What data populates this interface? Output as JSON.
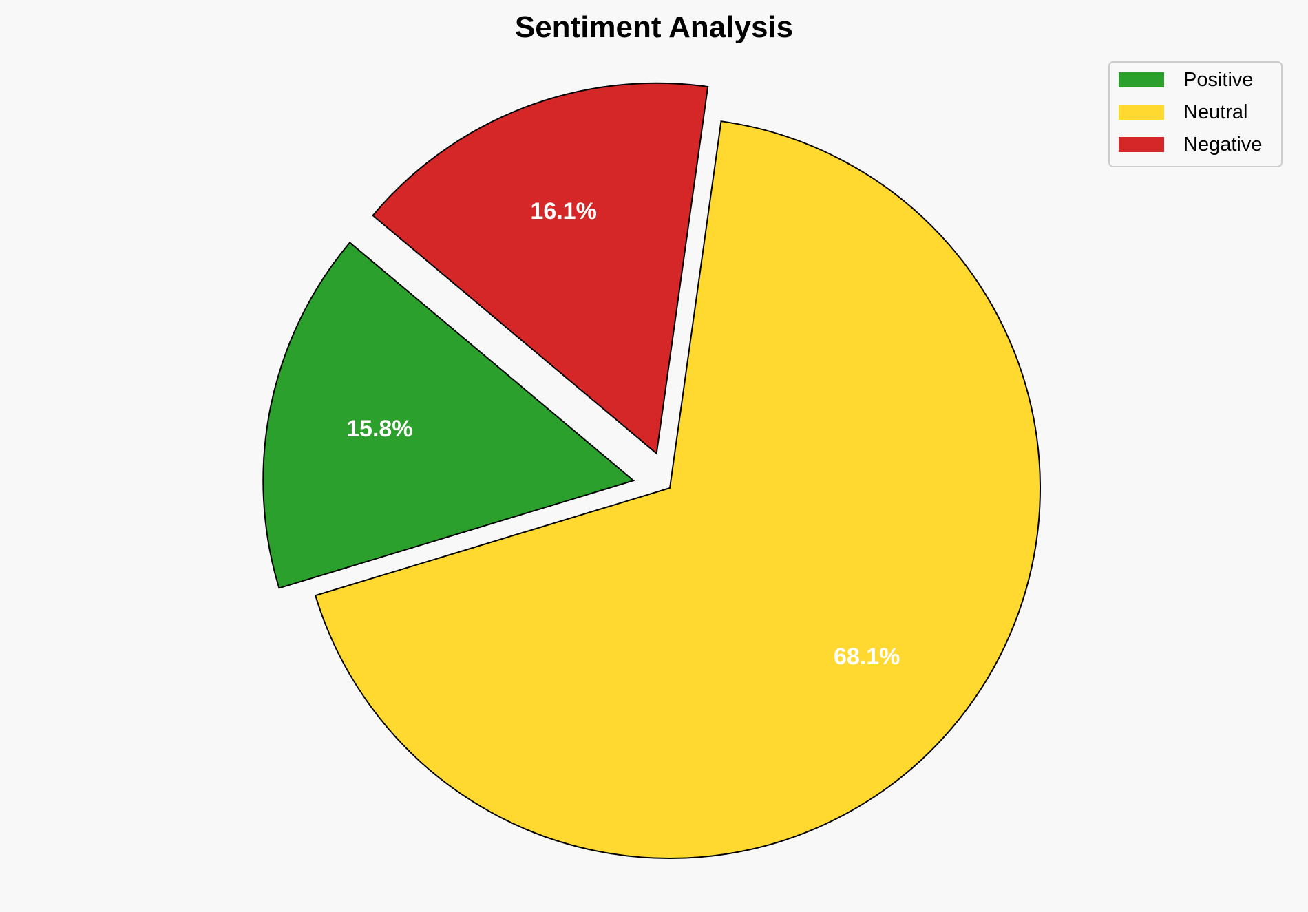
{
  "chart_data": {
    "type": "pie",
    "title": "Sentiment Analysis",
    "categories": [
      "Positive",
      "Neutral",
      "Negative"
    ],
    "values": [
      15.8,
      68.1,
      16.1
    ],
    "labels": [
      "15.8%",
      "68.1%",
      "16.1%"
    ],
    "colors": [
      "#2ca02c",
      "#ffd92f",
      "#d62728"
    ],
    "explode": [
      0.1,
      0,
      0.1
    ],
    "start_angle": 140,
    "direction": "counterclockwise",
    "legend": {
      "placement": "top-right",
      "entries": [
        "Positive",
        "Neutral",
        "Negative"
      ]
    },
    "background": "#f8f8f8"
  }
}
